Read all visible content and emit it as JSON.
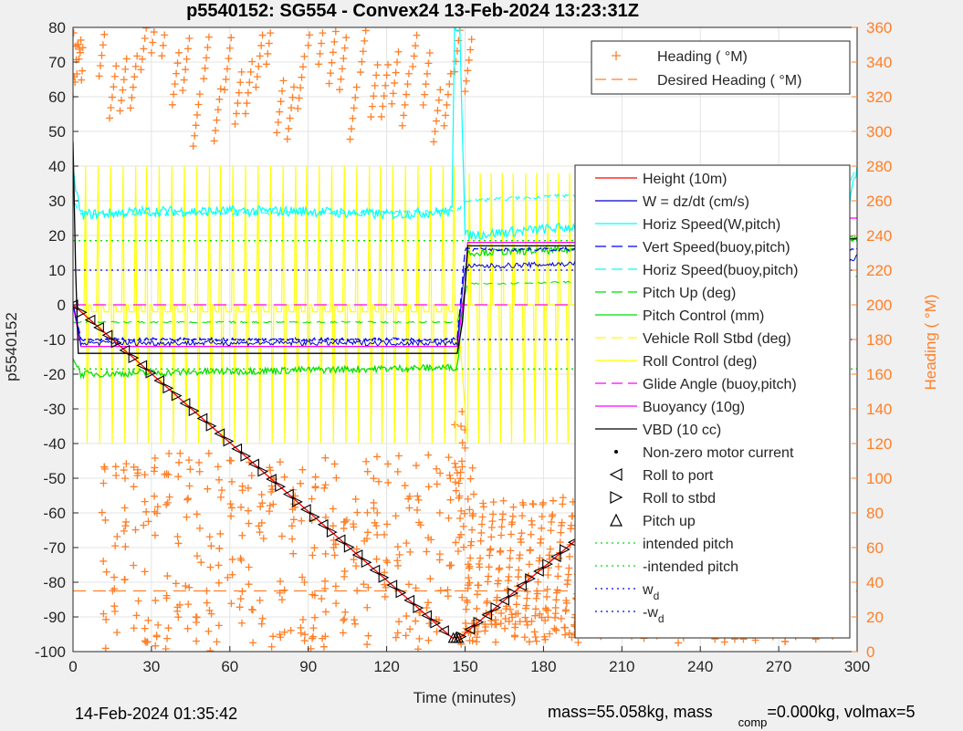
{
  "chart_data": {
    "type": "line",
    "title": "p5540152: SG554 - Convex24 13-Feb-2024 13:23:31Z",
    "xlabel": "Time (minutes)",
    "ylabel": "p5540152",
    "y2label": "Heading (  °M)",
    "xlim": [
      0,
      300
    ],
    "ylim": [
      -100,
      80
    ],
    "y2lim": [
      0,
      360
    ],
    "xticks": [
      "0",
      "30",
      "60",
      "90",
      "120",
      "150",
      "180",
      "210",
      "240",
      "270",
      "300"
    ],
    "yticks": [
      "-100",
      "-90",
      "-80",
      "-70",
      "-60",
      "-50",
      "-40",
      "-30",
      "-20",
      "-10",
      "0",
      "10",
      "20",
      "30",
      "40",
      "50",
      "60",
      "70",
      "80"
    ],
    "y2ticks": [
      "0",
      "20",
      "40",
      "60",
      "80",
      "100",
      "120",
      "140",
      "160",
      "180",
      "200",
      "220",
      "240",
      "260",
      "280",
      "300",
      "320",
      "340",
      "360"
    ],
    "grid": true,
    "legend_position": "top-right",
    "colors": {
      "height": "#ff0000",
      "w": "#0000cc",
      "horiz": "#00ffff",
      "vert_buoy": "#0000ff",
      "pitch": "#00dd00",
      "roll": "#ffff00",
      "glide": "#ff00ff",
      "vbd": "#000000",
      "heading": "#ff7f27"
    },
    "legend_heading": [
      {
        "label": "Heading (  °M)",
        "style": "plus"
      },
      {
        "label": "Desired Heading (    °M)",
        "style": "dash"
      }
    ],
    "legend_main": [
      {
        "label": "Height (10m)",
        "style": "line",
        "color": "#ff0000"
      },
      {
        "label": "W = dz/dt (cm/s)",
        "style": "line",
        "color": "#0000cc"
      },
      {
        "label": "Horiz Speed(W,pitch)",
        "style": "line",
        "color": "#00ffff"
      },
      {
        "label": "Vert Speed(buoy,pitch)",
        "style": "dash",
        "color": "#0000ff"
      },
      {
        "label": "Horiz Speed(buoy,pitch)",
        "style": "dash",
        "color": "#00ffff"
      },
      {
        "label": "Pitch Up (deg)",
        "style": "dash",
        "color": "#00dd00"
      },
      {
        "label": "Pitch Control (mm)",
        "style": "line",
        "color": "#00dd00"
      },
      {
        "label": "Vehicle Roll Stbd (deg)",
        "style": "dash",
        "color": "#ffff00"
      },
      {
        "label": "Roll Control (deg)",
        "style": "line",
        "color": "#ffff00"
      },
      {
        "label": "Glide Angle (buoy,pitch)",
        "style": "dash",
        "color": "#ff00ff"
      },
      {
        "label": "Buoyancy (10g)",
        "style": "line",
        "color": "#ff00ff"
      },
      {
        "label": "VBD (10 cc)",
        "style": "line",
        "color": "#000000"
      },
      {
        "label": "Non-zero motor current",
        "style": "dot",
        "color": "#000000"
      },
      {
        "label": "Roll to port",
        "style": "tri-left",
        "color": "#000000"
      },
      {
        "label": "Roll to stbd",
        "style": "tri-right",
        "color": "#000000"
      },
      {
        "label": "Pitch up",
        "style": "tri-up",
        "color": "#000000"
      },
      {
        "label": "intended pitch",
        "style": "dot-line",
        "color": "#00dd00"
      },
      {
        "label": "-intended pitch",
        "style": "dot-line",
        "color": "#00dd00"
      },
      {
        "label": "w",
        "sub": "d",
        "style": "dot-line",
        "color": "#0000ff"
      },
      {
        "label": "-w",
        "sub": "d",
        "style": "dot-line",
        "color": "#0000ff"
      }
    ],
    "series": {
      "depth": {
        "x": [
          0,
          145,
          148,
          297
        ],
        "y": [
          0,
          -96,
          -96,
          -1.5
        ]
      },
      "vbd": {
        "x": [
          0,
          1,
          2,
          3,
          147,
          149,
          150,
          151,
          296,
          297,
          300
        ],
        "y": [
          47,
          10,
          -14,
          -14,
          -14,
          -5,
          5,
          17,
          17,
          19,
          19
        ]
      },
      "buoyancy": {
        "x": [
          0,
          3,
          147,
          150,
          151,
          240,
          296,
          300
        ],
        "y": [
          0,
          -12,
          -12,
          5,
          18,
          18,
          25,
          25
        ]
      },
      "pitch_control": {
        "x": [
          0,
          3,
          147,
          150,
          151,
          295,
          300
        ],
        "y": [
          -15,
          -20,
          -18,
          5,
          15,
          18,
          20
        ]
      },
      "pitch_up": {
        "x": [
          0,
          3,
          147,
          151,
          295,
          300
        ],
        "y": [
          -5,
          -5,
          -5,
          6,
          8,
          8
        ]
      },
      "horiz_speed_w": {
        "x": [
          0,
          3,
          30,
          60,
          90,
          120,
          145,
          146,
          148,
          150,
          200,
          250,
          296,
          300
        ],
        "y": [
          38,
          26,
          27,
          27,
          27,
          26,
          27,
          80,
          80,
          20,
          23,
          24,
          25,
          40
        ]
      },
      "horiz_speed_buoy": {
        "x": [
          0,
          3,
          147,
          150,
          200,
          296,
          300
        ],
        "y": [
          30,
          26,
          27,
          30,
          32,
          33,
          40
        ]
      },
      "w": {
        "x": [
          0,
          3,
          147,
          150,
          200,
          296,
          300
        ],
        "y": [
          0,
          -11,
          -11,
          11,
          12,
          12,
          14
        ]
      },
      "vert_speed_buoy": {
        "x": [
          0,
          3,
          147,
          150,
          296,
          300
        ],
        "y": [
          0,
          -10,
          -10,
          16,
          16,
          16
        ]
      },
      "glide_angle": {
        "x": [
          0,
          300
        ],
        "y": [
          0,
          0
        ]
      },
      "intended_pitch": {
        "value": 18.5
      },
      "wd": {
        "value": 10
      }
    }
  },
  "footer": {
    "timestamp": "14-Feb-2024 01:35:42",
    "mass": "mass=55.058kg, mass",
    "mass_sub": "comp",
    "mass_tail": "=0.000kg, volmax=5"
  }
}
